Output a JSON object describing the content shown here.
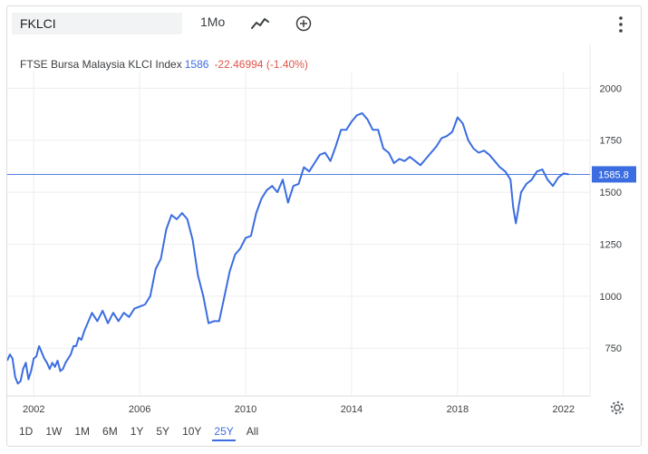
{
  "toolbar": {
    "symbol_value": "FKLCI",
    "interval_label": "1Mo",
    "chart_type_icon": "line-chart-icon",
    "compare_icon": "plus-circle-icon",
    "menu_icon": "vertical-dots-icon"
  },
  "legend": {
    "name": "FTSE Bursa Malaysia KLCI Index",
    "price": "1586",
    "change": "-22.46994 (-1.40%)"
  },
  "ranges": {
    "items": [
      "1D",
      "1W",
      "1M",
      "6M",
      "1Y",
      "5Y",
      "10Y",
      "25Y",
      "All"
    ],
    "active": "25Y"
  },
  "settings_icon": "gear-icon",
  "colors": {
    "line": "#3b6de0",
    "negative": "#e0554a",
    "grid": "#eeeeee",
    "price_badge": "#3b6de0"
  },
  "chart_data": {
    "type": "line",
    "title": "FTSE Bursa Malaysia KLCI Index",
    "xlabel": "",
    "ylabel": "",
    "y_ticks": [
      750,
      1000,
      1250,
      1500,
      1750,
      2000
    ],
    "y_tick_labels": [
      "750",
      "1000",
      "1250",
      "1500",
      "1750",
      "2000"
    ],
    "x_ticks": [
      2002,
      2006,
      2010,
      2014,
      2018,
      2022
    ],
    "x_tick_labels": [
      "2002",
      "2006",
      "2010",
      "2014",
      "2018",
      "2022"
    ],
    "xlim": [
      2001.0,
      2023.0
    ],
    "ylim": [
      520,
      2080
    ],
    "current_value": 1585.8,
    "current_label": "1585.8",
    "grid": true,
    "series": [
      {
        "x": [
          2001.0,
          2001.1,
          2001.2,
          2001.3,
          2001.4,
          2001.5,
          2001.6,
          2001.7,
          2001.8,
          2001.9,
          2002.0,
          2002.1,
          2002.2,
          2002.3,
          2002.4,
          2002.5,
          2002.6,
          2002.7,
          2002.8,
          2002.9,
          2003.0,
          2003.1,
          2003.2,
          2003.3,
          2003.4,
          2003.5,
          2003.6,
          2003.7,
          2003.8,
          2003.9,
          2004.0,
          2004.2,
          2004.4,
          2004.6,
          2004.8,
          2005.0,
          2005.2,
          2005.4,
          2005.6,
          2005.8,
          2006.0,
          2006.2,
          2006.4,
          2006.6,
          2006.8,
          2007.0,
          2007.2,
          2007.4,
          2007.6,
          2007.8,
          2008.0,
          2008.2,
          2008.4,
          2008.6,
          2008.8,
          2009.0,
          2009.2,
          2009.4,
          2009.6,
          2009.8,
          2010.0,
          2010.2,
          2010.4,
          2010.6,
          2010.8,
          2011.0,
          2011.2,
          2011.4,
          2011.6,
          2011.8,
          2012.0,
          2012.2,
          2012.4,
          2012.6,
          2012.8,
          2013.0,
          2013.2,
          2013.4,
          2013.6,
          2013.8,
          2014.0,
          2014.2,
          2014.4,
          2014.6,
          2014.8,
          2015.0,
          2015.2,
          2015.4,
          2015.6,
          2015.8,
          2016.0,
          2016.2,
          2016.4,
          2016.6,
          2016.8,
          2017.0,
          2017.2,
          2017.4,
          2017.6,
          2017.8,
          2018.0,
          2018.2,
          2018.4,
          2018.6,
          2018.8,
          2019.0,
          2019.2,
          2019.4,
          2019.6,
          2019.8,
          2020.0,
          2020.1,
          2020.2,
          2020.4,
          2020.6,
          2020.8,
          2021.0,
          2021.2,
          2021.4,
          2021.6,
          2021.8,
          2022.0,
          2022.2
        ],
        "values": [
          690,
          720,
          700,
          610,
          580,
          590,
          650,
          680,
          600,
          640,
          700,
          710,
          760,
          730,
          700,
          680,
          650,
          680,
          660,
          690,
          640,
          650,
          680,
          700,
          720,
          760,
          760,
          800,
          790,
          830,
          860,
          920,
          880,
          930,
          870,
          920,
          880,
          920,
          900,
          940,
          950,
          960,
          1000,
          1130,
          1180,
          1320,
          1390,
          1370,
          1400,
          1370,
          1270,
          1100,
          1000,
          870,
          880,
          880,
          1000,
          1120,
          1200,
          1230,
          1280,
          1290,
          1400,
          1470,
          1510,
          1530,
          1500,
          1560,
          1450,
          1530,
          1540,
          1620,
          1600,
          1640,
          1680,
          1690,
          1650,
          1720,
          1800,
          1800,
          1840,
          1870,
          1880,
          1850,
          1800,
          1800,
          1710,
          1690,
          1640,
          1660,
          1650,
          1670,
          1650,
          1630,
          1660,
          1690,
          1720,
          1760,
          1770,
          1790,
          1860,
          1830,
          1750,
          1710,
          1690,
          1700,
          1680,
          1650,
          1620,
          1600,
          1560,
          1430,
          1350,
          1500,
          1540,
          1560,
          1600,
          1610,
          1560,
          1530,
          1570,
          1590,
          1586
        ]
      }
    ]
  }
}
